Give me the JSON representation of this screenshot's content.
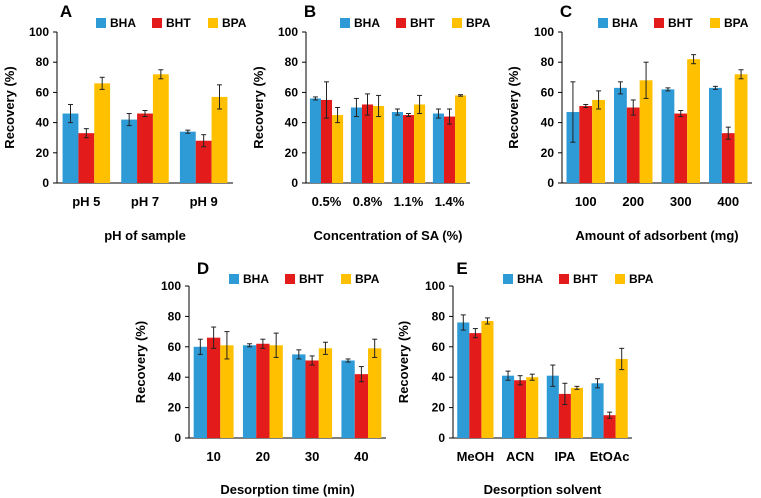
{
  "colors": {
    "BHA": "#2e9bd6",
    "BHT": "#e31b1b",
    "BPA": "#ffc000"
  },
  "chart_data": [
    {
      "type": "bar",
      "panel": "A",
      "xlabel": "pH of sample",
      "ylabel": "Recovery (%)",
      "ylim": [
        0,
        100
      ],
      "yticks": [
        "0",
        "20",
        "40",
        "60",
        "80",
        "100"
      ],
      "categories": [
        "pH 5",
        "pH 7",
        "pH 9"
      ],
      "series": [
        {
          "name": "BHA",
          "values": [
            46,
            42,
            34
          ],
          "errors": [
            6,
            4,
            1
          ]
        },
        {
          "name": "BHT",
          "values": [
            33,
            46,
            28
          ],
          "errors": [
            3,
            2,
            4
          ]
        },
        {
          "name": "BPA",
          "values": [
            66,
            72,
            57
          ],
          "errors": [
            4,
            3,
            8
          ]
        }
      ]
    },
    {
      "type": "bar",
      "panel": "B",
      "xlabel": "Concentration of SA (%)",
      "ylabel": "Recovery (%)",
      "ylim": [
        0,
        100
      ],
      "yticks": [
        "0",
        "20",
        "40",
        "60",
        "80",
        "100"
      ],
      "categories": [
        "0.5%",
        "0.8%",
        "1.1%",
        "1.4%"
      ],
      "series": [
        {
          "name": "BHA",
          "values": [
            56,
            50,
            47,
            46
          ],
          "errors": [
            1,
            6,
            2,
            3
          ]
        },
        {
          "name": "BHT",
          "values": [
            55,
            52,
            45,
            44
          ],
          "errors": [
            12,
            7,
            1,
            5
          ]
        },
        {
          "name": "BPA",
          "values": [
            45,
            51,
            52,
            58
          ],
          "errors": [
            5,
            7,
            6,
            0.5
          ]
        }
      ]
    },
    {
      "type": "bar",
      "panel": "C",
      "xlabel": "Amount of adsorbent (mg)",
      "ylabel": "Recovery (%)",
      "ylim": [
        0,
        100
      ],
      "yticks": [
        "0",
        "20",
        "40",
        "60",
        "80",
        "100"
      ],
      "categories": [
        "100",
        "200",
        "300",
        "400"
      ],
      "series": [
        {
          "name": "BHA",
          "values": [
            47,
            63,
            62,
            63
          ],
          "errors": [
            20,
            4,
            1,
            1
          ]
        },
        {
          "name": "BHT",
          "values": [
            51,
            50,
            46,
            33
          ],
          "errors": [
            1,
            5,
            2,
            4
          ]
        },
        {
          "name": "BPA",
          "values": [
            55,
            68,
            82,
            72
          ],
          "errors": [
            6,
            12,
            3,
            3
          ]
        }
      ]
    },
    {
      "type": "bar",
      "panel": "D",
      "xlabel": "Desorption time (min)",
      "ylabel": "Recovery (%)",
      "ylim": [
        0,
        100
      ],
      "yticks": [
        "0",
        "20",
        "40",
        "60",
        "80",
        "100"
      ],
      "categories": [
        "10",
        "20",
        "30",
        "40"
      ],
      "series": [
        {
          "name": "BHA",
          "values": [
            60,
            61,
            55,
            51
          ],
          "errors": [
            5,
            1,
            3,
            1
          ]
        },
        {
          "name": "BHT",
          "values": [
            66,
            62,
            51,
            42
          ],
          "errors": [
            7,
            3,
            3,
            5
          ]
        },
        {
          "name": "BPA",
          "values": [
            61,
            61,
            59,
            59
          ],
          "errors": [
            9,
            8,
            4,
            6
          ]
        }
      ]
    },
    {
      "type": "bar",
      "panel": "E",
      "xlabel": "Desorption solvent",
      "ylabel": "Recovery (%)",
      "ylim": [
        0,
        100
      ],
      "yticks": [
        "0",
        "20",
        "40",
        "60",
        "80",
        "100"
      ],
      "categories": [
        "MeOH",
        "ACN",
        "IPA",
        "EtOAc"
      ],
      "series": [
        {
          "name": "BHA",
          "values": [
            76,
            41,
            41,
            36
          ],
          "errors": [
            5,
            3,
            7,
            3
          ]
        },
        {
          "name": "BHT",
          "values": [
            69,
            38,
            29,
            15
          ],
          "errors": [
            3,
            3,
            7,
            2
          ]
        },
        {
          "name": "BPA",
          "values": [
            77,
            40,
            33,
            52
          ],
          "errors": [
            2,
            2,
            1,
            7
          ]
        }
      ]
    }
  ]
}
